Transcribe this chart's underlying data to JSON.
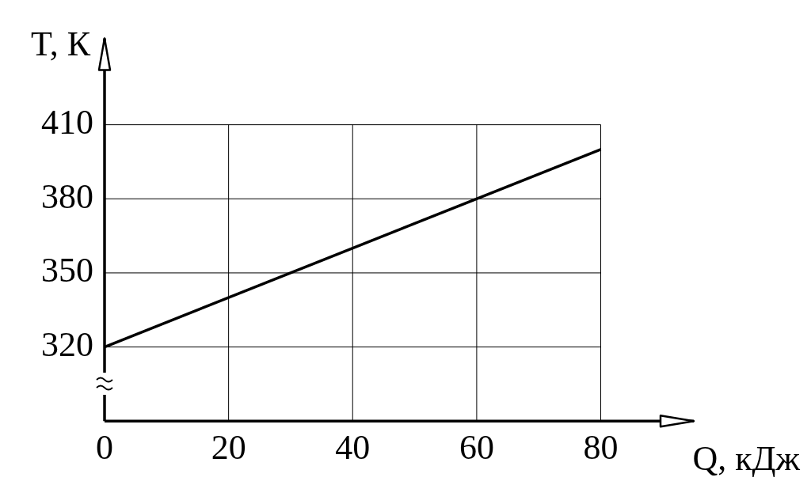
{
  "chart_data": {
    "type": "line",
    "xlabel": "Q, кДж",
    "ylabel": "T, К",
    "x": [
      0,
      80
    ],
    "series": [
      {
        "color": "#000000",
        "values": [
          320,
          400
        ]
      }
    ],
    "xlim": [
      0,
      95
    ],
    "ylim": [
      290,
      445
    ],
    "xticks": [
      {
        "value": 0,
        "label": "0"
      },
      20,
      40,
      60,
      80
    ],
    "yticks": [
      320,
      350,
      380,
      410
    ],
    "grid": true,
    "legend": false,
    "marker": "none",
    "line_style": "solid"
  }
}
